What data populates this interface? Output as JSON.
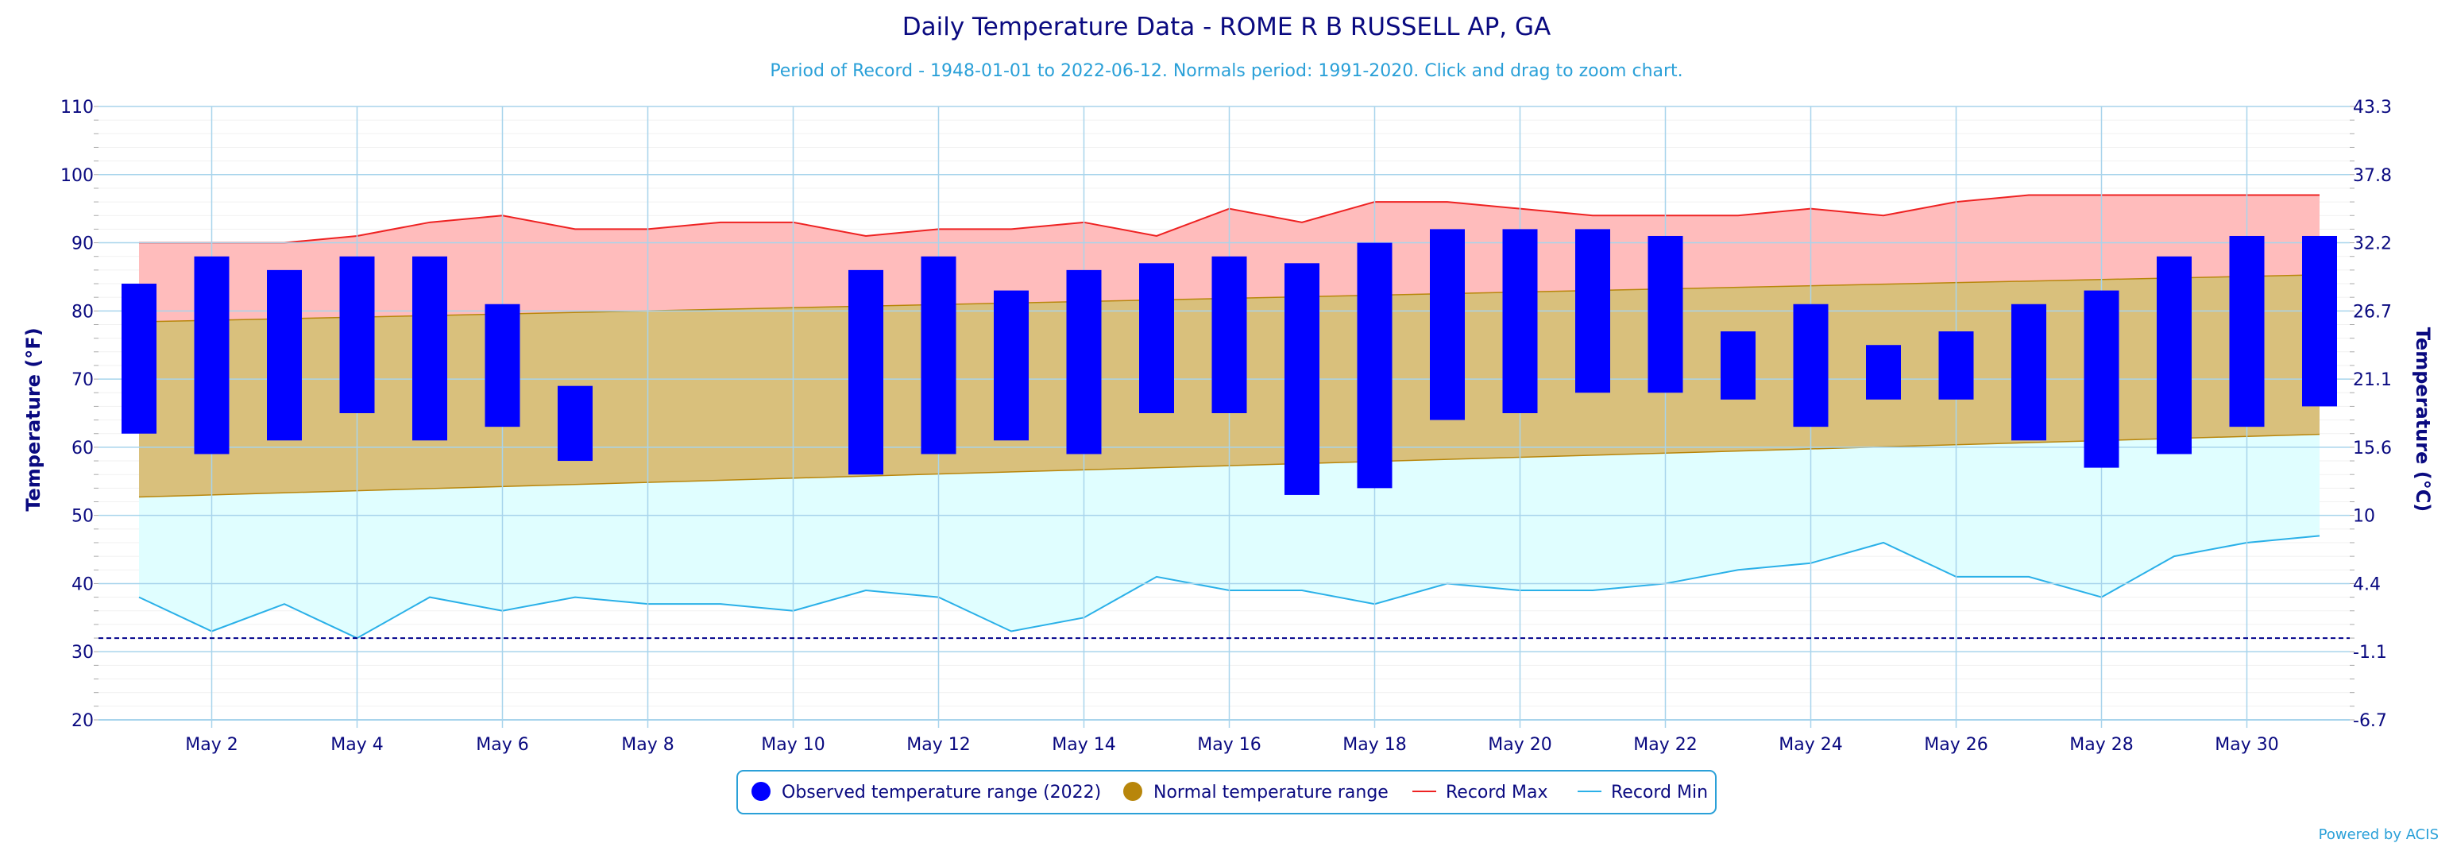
{
  "chart_data": {
    "type": "bar",
    "title": "Daily Temperature Data - ROME R B RUSSELL AP, GA",
    "subtitle": "Period of Record - 1948-01-01 to 2022-06-12. Normals period: 1991-2020. Click and drag to zoom chart.",
    "ylabel": "Temperature (°F)",
    "y2label": "Temperature (°C)",
    "ylim": [
      20,
      110
    ],
    "y_ticks": [
      20,
      30,
      40,
      50,
      60,
      70,
      80,
      90,
      100,
      110
    ],
    "y_ticks_labels": [
      "20",
      "30",
      "40",
      "50",
      "60",
      "70",
      "80",
      "90",
      "100",
      "110"
    ],
    "y2_ticks_labels": [
      "-6.7",
      "-1.1",
      "4.4",
      "10",
      "15.6",
      "21.1",
      "26.7",
      "32.2",
      "37.8",
      "43.3"
    ],
    "x_days": [
      1,
      31
    ],
    "x_tick_days": [
      2,
      4,
      6,
      8,
      10,
      12,
      14,
      16,
      18,
      20,
      22,
      24,
      26,
      28,
      30
    ],
    "x_tick_labels": [
      "May 2",
      "May 4",
      "May 6",
      "May 8",
      "May 10",
      "May 12",
      "May 14",
      "May 16",
      "May 18",
      "May 20",
      "May 22",
      "May 24",
      "May 26",
      "May 28",
      "May 30"
    ],
    "freezing_line": 32,
    "grid": true,
    "legend_position": "bottom-center",
    "series": [
      {
        "name": "Observed temperature range (2022)",
        "kind": "range-bar",
        "days": [
          1,
          2,
          3,
          4,
          5,
          6,
          7,
          11,
          12,
          13,
          14,
          15,
          16,
          17,
          18,
          19,
          20,
          21,
          22,
          23,
          24,
          25,
          26,
          27,
          28,
          29,
          30,
          31
        ],
        "low": [
          62,
          59,
          61,
          65,
          61,
          63,
          58,
          56,
          59,
          61,
          59,
          65,
          65,
          53,
          54,
          64,
          65,
          68,
          68,
          67,
          63,
          67,
          67,
          61,
          57,
          59,
          63,
          66
        ],
        "high": [
          84,
          88,
          86,
          88,
          88,
          81,
          69,
          86,
          88,
          83,
          86,
          87,
          88,
          87,
          90,
          92,
          92,
          92,
          91,
          77,
          81,
          75,
          77,
          81,
          83,
          88,
          91,
          91
        ]
      },
      {
        "name": "Normal temperature range",
        "kind": "band",
        "days": [
          1,
          31
        ],
        "low": [
          52.7,
          61.9
        ],
        "high": [
          78.4,
          85.3
        ]
      },
      {
        "name": "Record Max",
        "kind": "line",
        "days": [
          1,
          2,
          3,
          4,
          5,
          6,
          7,
          8,
          9,
          10,
          11,
          12,
          13,
          14,
          15,
          16,
          17,
          18,
          19,
          20,
          21,
          22,
          23,
          24,
          25,
          26,
          27,
          28,
          29,
          30,
          31
        ],
        "values": [
          90,
          90,
          90,
          91,
          93,
          94,
          92,
          92,
          93,
          93,
          91,
          92,
          92,
          93,
          91,
          95,
          93,
          96,
          96,
          95,
          94,
          94,
          94,
          95,
          94,
          96,
          97,
          97,
          97,
          97,
          97
        ]
      },
      {
        "name": "Record Min",
        "kind": "line",
        "days": [
          1,
          2,
          3,
          4,
          5,
          6,
          7,
          8,
          9,
          10,
          11,
          12,
          13,
          14,
          15,
          16,
          17,
          18,
          19,
          20,
          21,
          22,
          23,
          24,
          25,
          26,
          27,
          28,
          29,
          30,
          31
        ],
        "values": [
          38,
          33,
          37,
          32,
          38,
          36,
          38,
          37,
          37,
          36,
          39,
          38,
          33,
          35,
          41,
          39,
          39,
          37,
          40,
          39,
          39,
          40,
          42,
          43,
          46,
          41,
          41,
          38,
          44,
          46,
          47
        ]
      }
    ]
  },
  "legend": {
    "observed_label": "Observed temperature range (2022)",
    "normal_label": "Normal temperature range",
    "record_max_label": "Record Max",
    "record_min_label": "Record Min"
  },
  "credit": "Powered by ACIS",
  "colors": {
    "observed": "#0000ff",
    "normal_fill": "#d9c07c",
    "normal_line": "#b8860b",
    "record_max_fill": "#ffbcbc",
    "record_max_line": "#ee2222",
    "record_min_fill": "#e0feff",
    "record_min_line": "#2ab0e8",
    "grid": "#a8d4ec",
    "freezing": "#00008b"
  }
}
